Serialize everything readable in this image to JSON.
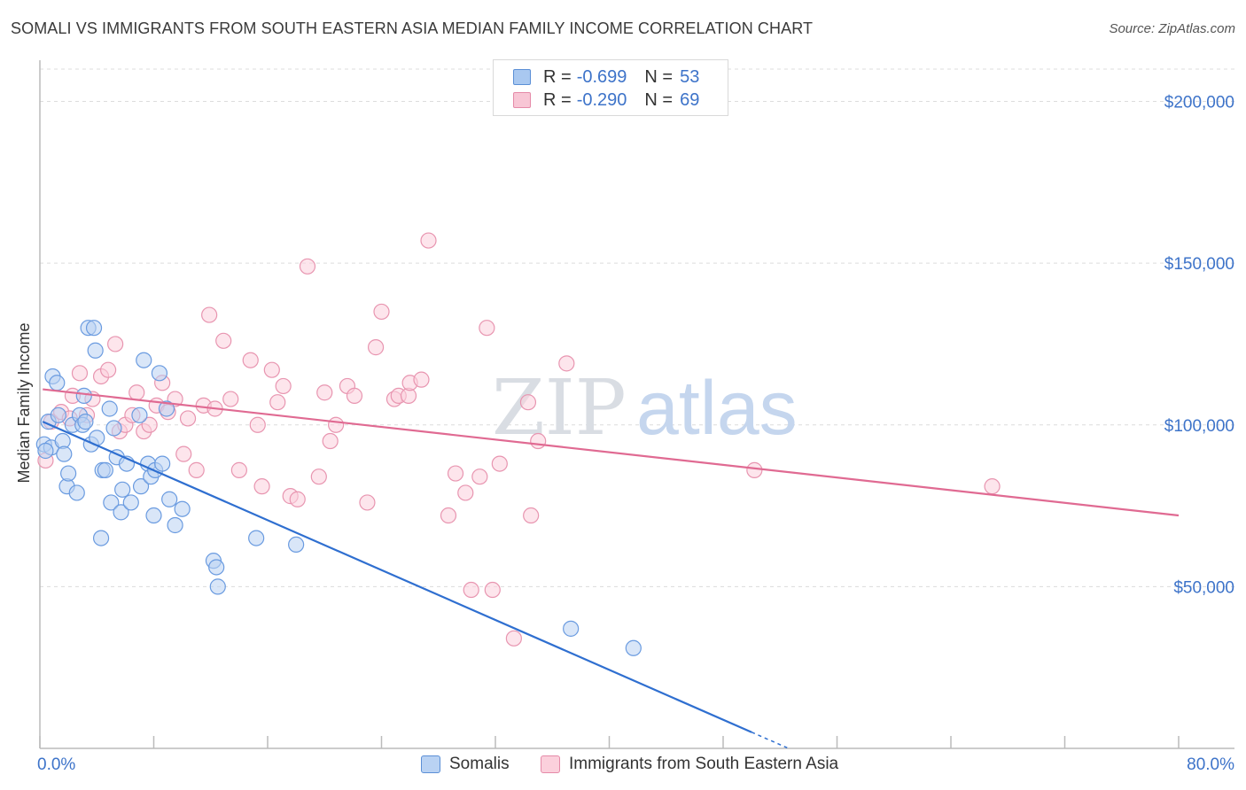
{
  "header": {
    "title": "SOMALI VS IMMIGRANTS FROM SOUTH EASTERN ASIA MEDIAN FAMILY INCOME CORRELATION CHART",
    "source": "Source: ZipAtlas.com"
  },
  "watermark": {
    "zip": "ZIP",
    "atlas": "atlas"
  },
  "legend": {
    "rows": [
      {
        "r_label": "R =",
        "r_value": "-0.699",
        "n_label": "N =",
        "n_value": "53",
        "color": "#a9c8f0",
        "border": "#5b8fd6"
      },
      {
        "r_label": "R =",
        "r_value": "-0.290",
        "n_label": "N =",
        "n_value": "69",
        "color": "#f8c6d5",
        "border": "#e58aa8"
      }
    ]
  },
  "bottom_legend": {
    "items": [
      {
        "label": "Somalis",
        "color": "#b9d2f3",
        "border": "#5b8fd6"
      },
      {
        "label": "Immigrants from South Eastern Asia",
        "color": "#fbd0dc",
        "border": "#e58aa8"
      }
    ]
  },
  "chart_data": {
    "type": "scatter",
    "title": "SOMALI VS IMMIGRANTS FROM SOUTH EASTERN ASIA MEDIAN FAMILY INCOME CORRELATION CHART",
    "xlabel": "",
    "ylabel": "Median Family Income",
    "xlim": [
      0,
      80
    ],
    "ylim": [
      0,
      210000
    ],
    "x_tick_labels": [
      "0.0%",
      "80.0%"
    ],
    "y_ticks": [
      50000,
      100000,
      150000,
      200000
    ],
    "y_tick_labels": [
      "$50,000",
      "$100,000",
      "$150,000",
      "$200,000"
    ],
    "grid": true,
    "series": [
      {
        "name": "Somalis",
        "color": "#6a9be0",
        "fill": "#b9d2f3",
        "trend": {
          "x": [
            0.2,
            50.0
          ],
          "y": [
            101000,
            5000
          ],
          "color": "#2f6fd0",
          "dashed_extension_to_x": 52.5
        },
        "points": [
          [
            0.3,
            94000
          ],
          [
            0.6,
            101000
          ],
          [
            0.8,
            93000
          ],
          [
            0.9,
            115000
          ],
          [
            1.2,
            113000
          ],
          [
            1.3,
            103000
          ],
          [
            1.6,
            95000
          ],
          [
            1.7,
            91000
          ],
          [
            1.9,
            81000
          ],
          [
            2.0,
            85000
          ],
          [
            2.3,
            100000
          ],
          [
            2.6,
            79000
          ],
          [
            2.8,
            103000
          ],
          [
            3.0,
            100000
          ],
          [
            3.1,
            109000
          ],
          [
            3.2,
            101000
          ],
          [
            3.4,
            130000
          ],
          [
            3.6,
            94000
          ],
          [
            3.8,
            130000
          ],
          [
            3.9,
            123000
          ],
          [
            4.0,
            96000
          ],
          [
            4.3,
            65000
          ],
          [
            4.4,
            86000
          ],
          [
            4.6,
            86000
          ],
          [
            4.9,
            105000
          ],
          [
            5.0,
            76000
          ],
          [
            5.2,
            99000
          ],
          [
            5.4,
            90000
          ],
          [
            5.7,
            73000
          ],
          [
            5.8,
            80000
          ],
          [
            6.1,
            88000
          ],
          [
            6.4,
            76000
          ],
          [
            7.0,
            103000
          ],
          [
            7.1,
            81000
          ],
          [
            7.3,
            120000
          ],
          [
            7.6,
            88000
          ],
          [
            7.8,
            84000
          ],
          [
            8.0,
            72000
          ],
          [
            8.1,
            86000
          ],
          [
            8.4,
            116000
          ],
          [
            8.6,
            88000
          ],
          [
            8.9,
            105000
          ],
          [
            9.1,
            77000
          ],
          [
            9.5,
            69000
          ],
          [
            10.0,
            74000
          ],
          [
            12.2,
            58000
          ],
          [
            12.4,
            56000
          ],
          [
            12.5,
            50000
          ],
          [
            15.2,
            65000
          ],
          [
            18.0,
            63000
          ],
          [
            37.3,
            37000
          ],
          [
            41.7,
            31000
          ],
          [
            0.4,
            92000
          ]
        ]
      },
      {
        "name": "Immigrants from South Eastern Asia",
        "color": "#e895b0",
        "fill": "#fbd0dc",
        "trend": {
          "x": [
            0.2,
            80.0
          ],
          "y": [
            111000,
            72000
          ],
          "color": "#e06a92"
        },
        "points": [
          [
            0.4,
            89000
          ],
          [
            0.8,
            101000
          ],
          [
            1.5,
            104000
          ],
          [
            2.1,
            102000
          ],
          [
            2.3,
            109000
          ],
          [
            2.8,
            116000
          ],
          [
            3.3,
            103000
          ],
          [
            3.7,
            108000
          ],
          [
            4.3,
            115000
          ],
          [
            4.8,
            117000
          ],
          [
            5.3,
            125000
          ],
          [
            5.6,
            98000
          ],
          [
            6.0,
            100000
          ],
          [
            6.5,
            103000
          ],
          [
            6.8,
            110000
          ],
          [
            7.3,
            98000
          ],
          [
            7.7,
            100000
          ],
          [
            8.2,
            106000
          ],
          [
            8.6,
            113000
          ],
          [
            9.0,
            104000
          ],
          [
            9.5,
            108000
          ],
          [
            10.1,
            91000
          ],
          [
            10.4,
            102000
          ],
          [
            11.0,
            86000
          ],
          [
            11.5,
            106000
          ],
          [
            11.9,
            134000
          ],
          [
            12.3,
            105000
          ],
          [
            12.9,
            126000
          ],
          [
            13.4,
            108000
          ],
          [
            14.0,
            86000
          ],
          [
            14.8,
            120000
          ],
          [
            15.3,
            100000
          ],
          [
            15.6,
            81000
          ],
          [
            16.3,
            117000
          ],
          [
            16.7,
            107000
          ],
          [
            17.1,
            112000
          ],
          [
            17.6,
            78000
          ],
          [
            18.1,
            77000
          ],
          [
            18.8,
            149000
          ],
          [
            19.6,
            84000
          ],
          [
            20.0,
            110000
          ],
          [
            20.4,
            95000
          ],
          [
            20.8,
            100000
          ],
          [
            21.6,
            112000
          ],
          [
            22.1,
            109000
          ],
          [
            23.0,
            76000
          ],
          [
            23.6,
            124000
          ],
          [
            24.0,
            135000
          ],
          [
            24.9,
            108000
          ],
          [
            25.2,
            109000
          ],
          [
            25.9,
            109000
          ],
          [
            26.0,
            113000
          ],
          [
            26.8,
            114000
          ],
          [
            27.3,
            157000
          ],
          [
            28.7,
            72000
          ],
          [
            29.2,
            85000
          ],
          [
            29.9,
            79000
          ],
          [
            30.3,
            49000
          ],
          [
            30.9,
            84000
          ],
          [
            31.4,
            130000
          ],
          [
            31.8,
            49000
          ],
          [
            32.3,
            88000
          ],
          [
            33.3,
            34000
          ],
          [
            34.3,
            107000
          ],
          [
            34.5,
            72000
          ],
          [
            35.0,
            95000
          ],
          [
            37.0,
            119000
          ],
          [
            50.2,
            86000
          ],
          [
            66.9,
            81000
          ]
        ]
      }
    ]
  }
}
